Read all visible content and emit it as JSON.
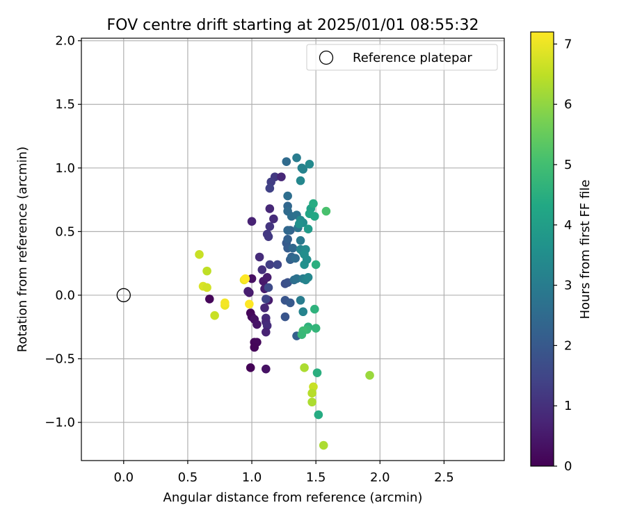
{
  "chart_data": {
    "type": "scatter",
    "title": "FOV centre drift starting at 2025/01/01 08:55:32",
    "xlabel": "Angular distance from reference (arcmin)",
    "ylabel": "Rotation from reference (arcmin)",
    "xlim": [
      -0.33,
      2.97
    ],
    "ylim": [
      -1.3,
      2.02
    ],
    "xticks": [
      0.0,
      0.5,
      1.0,
      1.5,
      2.0,
      2.5
    ],
    "xtick_labels": [
      "0.0",
      "0.5",
      "1.0",
      "1.5",
      "2.0",
      "2.5"
    ],
    "yticks": [
      -1.0,
      -0.5,
      0.0,
      0.5,
      1.0,
      1.5,
      2.0
    ],
    "ytick_labels": [
      "−1.0",
      "−0.5",
      "0.0",
      "0.5",
      "1.0",
      "1.5",
      "2.0"
    ],
    "grid": true,
    "legend": {
      "position": "top-right",
      "entries": [
        "Reference platepar"
      ]
    },
    "reference": {
      "x": 0.0,
      "y": 0.0,
      "marker": "hollow-circle"
    },
    "colorbar": {
      "label": "Hours from first FF file",
      "min": 0,
      "max": 7.2,
      "ticks": [
        0,
        1,
        2,
        3,
        4,
        5,
        6,
        7
      ],
      "tick_labels": [
        "0",
        "1",
        "2",
        "3",
        "4",
        "5",
        "6",
        "7"
      ],
      "colormap": "viridis"
    },
    "points": [
      [
        0.67,
        -0.03,
        0.1
      ],
      [
        0.99,
        -0.14,
        0.1
      ],
      [
        1.0,
        -0.17,
        0.15
      ],
      [
        1.02,
        -0.37,
        0.1
      ],
      [
        1.04,
        -0.37,
        0.15
      ],
      [
        1.02,
        -0.41,
        0.1
      ],
      [
        0.99,
        -0.57,
        0.05
      ],
      [
        1.0,
        0.13,
        0.3
      ],
      [
        1.02,
        -0.19,
        0.3
      ],
      [
        1.04,
        -0.23,
        0.4
      ],
      [
        1.11,
        -0.58,
        0.35
      ],
      [
        0.98,
        0.02,
        0.5
      ],
      [
        0.97,
        0.03,
        0.6
      ],
      [
        1.09,
        0.11,
        0.5
      ],
      [
        1.12,
        0.14,
        0.55
      ],
      [
        1.1,
        0.05,
        0.6
      ],
      [
        1.13,
        -0.04,
        0.55
      ],
      [
        1.1,
        -0.1,
        0.8
      ],
      [
        1.11,
        -0.18,
        0.9
      ],
      [
        1.11,
        -0.21,
        0.8
      ],
      [
        1.12,
        -0.24,
        0.9
      ],
      [
        1.11,
        -0.29,
        0.7
      ],
      [
        1.06,
        0.3,
        0.9
      ],
      [
        1.08,
        0.2,
        1.0
      ],
      [
        1.0,
        0.58,
        0.7
      ],
      [
        1.14,
        0.68,
        0.8
      ],
      [
        1.17,
        0.6,
        0.9
      ],
      [
        1.14,
        0.54,
        1.1
      ],
      [
        1.12,
        0.48,
        1.2
      ],
      [
        1.13,
        0.46,
        1.2
      ],
      [
        1.14,
        0.24,
        1.3
      ],
      [
        1.18,
        0.93,
        1.2
      ],
      [
        1.15,
        0.89,
        1.3
      ],
      [
        1.14,
        0.84,
        1.4
      ],
      [
        1.23,
        0.93,
        0.8
      ],
      [
        1.2,
        0.24,
        1.5
      ],
      [
        1.13,
        0.06,
        1.6
      ],
      [
        1.11,
        -0.03,
        1.5
      ],
      [
        1.26,
        0.09,
        1.7
      ],
      [
        1.28,
        0.1,
        1.8
      ],
      [
        1.26,
        -0.04,
        1.9
      ],
      [
        1.3,
        -0.06,
        2.0
      ],
      [
        1.26,
        -0.17,
        1.9
      ],
      [
        1.27,
        0.41,
        2.0
      ],
      [
        1.28,
        0.37,
        2.1
      ],
      [
        1.28,
        0.44,
        2.2
      ],
      [
        1.3,
        0.28,
        2.2
      ],
      [
        1.31,
        0.3,
        2.3
      ],
      [
        1.3,
        0.51,
        2.3
      ],
      [
        1.28,
        0.51,
        2.4
      ],
      [
        1.32,
        0.37,
        2.4
      ],
      [
        1.34,
        0.29,
        2.5
      ],
      [
        1.28,
        0.7,
        2.4
      ],
      [
        1.28,
        0.66,
        2.5
      ],
      [
        1.28,
        0.78,
        2.6
      ],
      [
        1.31,
        0.62,
        2.6
      ],
      [
        1.35,
        0.63,
        2.7
      ],
      [
        1.36,
        0.53,
        2.8
      ],
      [
        1.38,
        0.43,
        2.9
      ],
      [
        1.27,
        1.05,
        2.5
      ],
      [
        1.35,
        1.08,
        3.0
      ],
      [
        1.39,
        1.0,
        3.1
      ],
      [
        1.4,
        0.99,
        3.2
      ],
      [
        1.38,
        0.9,
        3.3
      ],
      [
        1.45,
        1.03,
        3.4
      ],
      [
        1.33,
        0.12,
        2.6
      ],
      [
        1.35,
        0.13,
        2.7
      ],
      [
        1.4,
        0.13,
        3.0
      ],
      [
        1.42,
        0.12,
        3.2
      ],
      [
        1.44,
        0.14,
        3.3
      ],
      [
        1.38,
        -0.04,
        3.0
      ],
      [
        1.4,
        -0.13,
        3.2
      ],
      [
        1.35,
        -0.32,
        2.2
      ],
      [
        1.38,
        0.36,
        3.2
      ],
      [
        1.4,
        0.34,
        3.3
      ],
      [
        1.42,
        0.36,
        3.4
      ],
      [
        1.41,
        0.32,
        3.5
      ],
      [
        1.41,
        0.24,
        3.6
      ],
      [
        1.43,
        0.28,
        3.5
      ],
      [
        1.38,
        0.59,
        3.4
      ],
      [
        1.4,
        0.57,
        3.5
      ],
      [
        1.37,
        0.56,
        3.6
      ],
      [
        1.44,
        0.52,
        3.9
      ],
      [
        1.46,
        0.68,
        4.1
      ],
      [
        1.45,
        0.64,
        4.2
      ],
      [
        1.48,
        0.72,
        4.4
      ],
      [
        1.49,
        0.62,
        4.3
      ],
      [
        1.5,
        0.24,
        4.5
      ],
      [
        1.49,
        -0.11,
        4.6
      ],
      [
        1.5,
        -0.26,
        4.7
      ],
      [
        1.44,
        -0.25,
        4.6
      ],
      [
        1.43,
        -0.27,
        4.8
      ],
      [
        1.4,
        -0.28,
        4.9
      ],
      [
        1.39,
        -0.31,
        4.8
      ],
      [
        1.51,
        -0.61,
        4.5
      ],
      [
        1.52,
        -0.94,
        4.4
      ],
      [
        1.58,
        0.66,
        5.1
      ],
      [
        1.41,
        -0.57,
        6.3
      ],
      [
        1.48,
        -0.72,
        6.6
      ],
      [
        1.47,
        -0.77,
        6.4
      ],
      [
        1.47,
        -0.84,
        6.3
      ],
      [
        1.92,
        -0.63,
        6.1
      ],
      [
        1.56,
        -1.18,
        6.3
      ],
      [
        0.59,
        0.32,
        6.6
      ],
      [
        0.65,
        0.19,
        6.5
      ],
      [
        0.62,
        0.07,
        6.8
      ],
      [
        0.65,
        0.06,
        6.7
      ],
      [
        0.71,
        -0.16,
        6.6
      ],
      [
        0.79,
        -0.08,
        7.0
      ],
      [
        0.79,
        -0.06,
        7.1
      ],
      [
        0.94,
        0.12,
        7.0
      ],
      [
        0.95,
        0.13,
        7.2
      ],
      [
        0.98,
        -0.07,
        7.2
      ]
    ]
  }
}
